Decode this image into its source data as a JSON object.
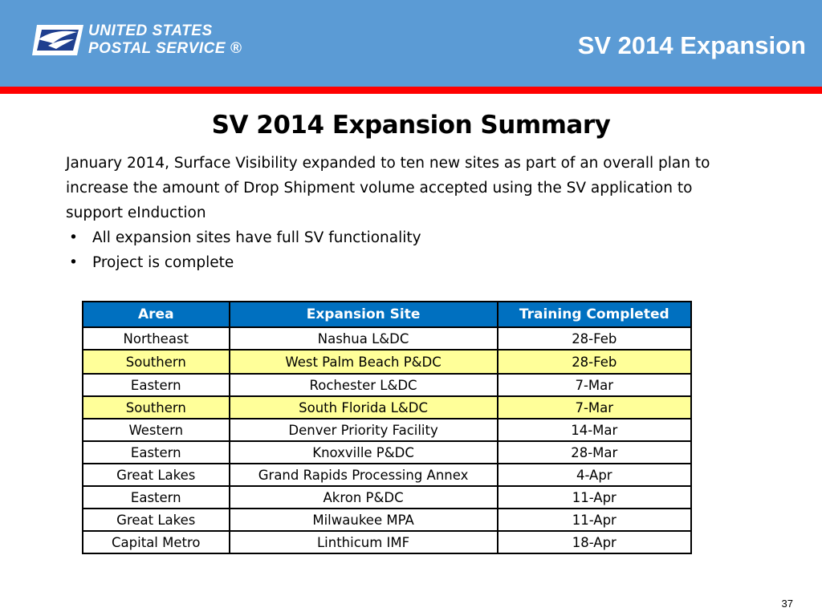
{
  "header": {
    "logo_line1": "UNITED STATES",
    "logo_line2": "POSTAL SERVICE ®",
    "title": "SV 2014 Expansion",
    "bg_color": "#5b9bd5",
    "accent_bar_color": "#ff0000"
  },
  "slide": {
    "title": "SV 2014 Expansion Summary",
    "paragraph": "January 2014, Surface Visibility expanded to ten new sites as part of an overall plan to increase the amount of Drop Shipment volume accepted using the SV application to support eInduction",
    "bullets": [
      "All expansion sites have full SV functionality",
      "Project is complete"
    ]
  },
  "table": {
    "headers": [
      "Area",
      "Expansion Site",
      "Training Completed"
    ],
    "rows": [
      {
        "area": "Northeast",
        "site": "Nashua L&DC",
        "date": "28-Feb"
      },
      {
        "area": "Southern",
        "site": "West Palm Beach P&DC",
        "date": "28-Feb"
      },
      {
        "area": "Eastern",
        "site": "Rochester L&DC",
        "date": "7-Mar"
      },
      {
        "area": "Southern",
        "site": "South Florida L&DC",
        "date": "7-Mar"
      },
      {
        "area": "Western",
        "site": "Denver Priority Facility",
        "date": "14-Mar"
      },
      {
        "area": "Eastern",
        "site": "Knoxville P&DC",
        "date": "28-Mar"
      },
      {
        "area": "Great Lakes",
        "site": "Grand Rapids Processing Annex",
        "date": "4-Apr"
      },
      {
        "area": "Eastern",
        "site": "Akron P&DC",
        "date": "11-Apr"
      },
      {
        "area": "Great Lakes",
        "site": "Milwaukee MPA",
        "date": "11-Apr"
      },
      {
        "area": "Capital Metro",
        "site": "Linthicum IMF",
        "date": "18-Apr"
      }
    ],
    "header_color": "#0070c0",
    "highlight_color": "#ffff99"
  },
  "footer": {
    "page_number": "37"
  }
}
